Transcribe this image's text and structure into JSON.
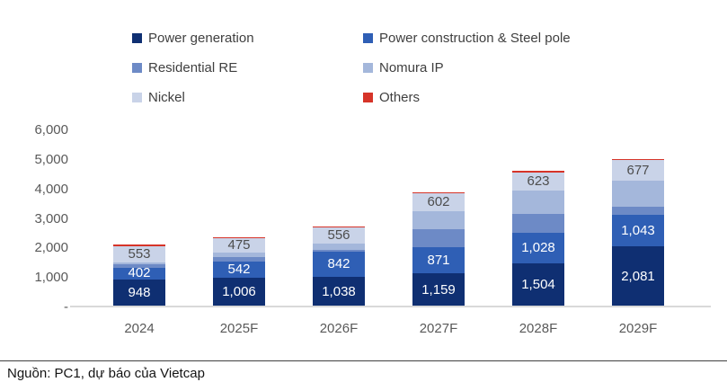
{
  "legend": {
    "items": [
      {
        "label": "Power generation",
        "color": "#0F2F72"
      },
      {
        "label": "Power construction & Steel pole",
        "color": "#2F5FB5"
      },
      {
        "label": "Residential RE",
        "color": "#6D8AC6"
      },
      {
        "label": "Nomura IP",
        "color": "#A4B7DB"
      },
      {
        "label": "Nickel",
        "color": "#C9D3E8"
      },
      {
        "label": "Others",
        "color": "#D63429"
      }
    ]
  },
  "chart_data": {
    "type": "bar",
    "stacked": true,
    "title": "",
    "xlabel": "",
    "ylabel": "",
    "categories": [
      "2024",
      "2025F",
      "2026F",
      "2027F",
      "2028F",
      "2029F"
    ],
    "series": [
      {
        "name": "Power generation",
        "color": "#0F2F72",
        "values": [
          948,
          1006,
          1038,
          1159,
          1504,
          2081
        ],
        "labels": [
          "948",
          "1,006",
          "1,038",
          "1,159",
          "1,504",
          "2,081"
        ],
        "label_color": "#FFFFFF",
        "estimated": false
      },
      {
        "name": "Power construction & Steel pole",
        "color": "#2F5FB5",
        "values": [
          402,
          542,
          842,
          871,
          1028,
          1043
        ],
        "labels": [
          "402",
          "542",
          "842",
          "871",
          "1,028",
          "1,043"
        ],
        "label_color": "#FFFFFF",
        "estimated": false
      },
      {
        "name": "Residential RE",
        "color": "#6D8AC6",
        "values": [
          120,
          150,
          80,
          620,
          650,
          280
        ],
        "labels": null,
        "label_color": null,
        "estimated": true
      },
      {
        "name": "Nomura IP",
        "color": "#A4B7DB",
        "values": [
          60,
          160,
          190,
          620,
          770,
          900
        ],
        "labels": null,
        "label_color": null,
        "estimated": true
      },
      {
        "name": "Nickel",
        "color": "#C9D3E8",
        "values": [
          553,
          475,
          556,
          602,
          623,
          677
        ],
        "labels": [
          "553",
          "475",
          "556",
          "602",
          "623",
          "677"
        ],
        "label_color": "#4D4D4D",
        "estimated": false
      },
      {
        "name": "Others",
        "color": "#D63429",
        "values": [
          40,
          40,
          40,
          40,
          40,
          30
        ],
        "labels": null,
        "label_color": null,
        "estimated": true
      }
    ],
    "ylim": [
      0,
      6000
    ],
    "yticks": [
      {
        "label": "6,000",
        "value": 6000
      },
      {
        "label": "5,000",
        "value": 5000
      },
      {
        "label": "4,000",
        "value": 4000
      },
      {
        "label": "3,000",
        "value": 3000
      },
      {
        "label": "2,000",
        "value": 2000
      },
      {
        "label": "1,000",
        "value": 1000
      },
      {
        "label": "-",
        "value": 0
      }
    ],
    "grid": false,
    "legend_position": "top"
  },
  "footer": {
    "source": "Nguồn: PC1, dự báo của Vietcap"
  }
}
